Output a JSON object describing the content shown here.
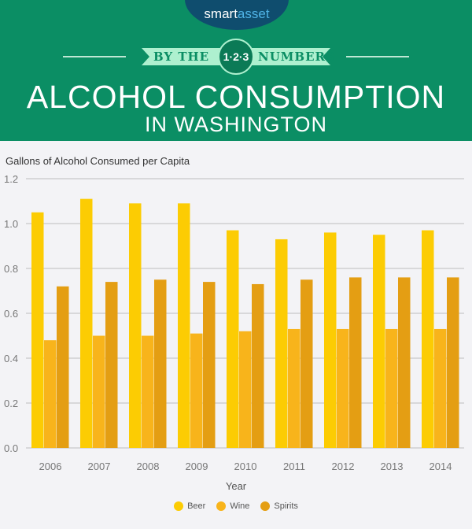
{
  "header": {
    "brand": "smartasset",
    "brand_a": "smart",
    "brand_b": "asset",
    "ribbon_left": "BY THE",
    "ribbon_num": "1·2·3",
    "ribbon_right": "NUMBERS",
    "title": "ALCOHOL CONSUMPTION",
    "subtitle": "IN WASHINGTON"
  },
  "chart_data": {
    "type": "bar",
    "title": "",
    "ylabel": "Gallons of Alcohol Consumed per Capita",
    "xlabel": "Year",
    "ylim": [
      0,
      1.2
    ],
    "yticks": [
      "0.0",
      "0.2",
      "0.4",
      "0.6",
      "0.8",
      "1.0",
      "1.2"
    ],
    "categories": [
      "2006",
      "2007",
      "2008",
      "2009",
      "2010",
      "2011",
      "2012",
      "2013",
      "2014"
    ],
    "series": [
      {
        "name": "Beer",
        "color": "#fccc03",
        "values": [
          1.05,
          1.11,
          1.09,
          1.09,
          0.97,
          0.93,
          0.96,
          0.95,
          0.97
        ]
      },
      {
        "name": "Wine",
        "color": "#f8b41b",
        "values": [
          0.48,
          0.5,
          0.5,
          0.51,
          0.52,
          0.53,
          0.53,
          0.53,
          0.53
        ]
      },
      {
        "name": "Spirits",
        "color": "#e49e13",
        "values": [
          0.72,
          0.74,
          0.75,
          0.74,
          0.73,
          0.75,
          0.76,
          0.76,
          0.76
        ]
      }
    ],
    "grid": true,
    "legend": "bottom"
  },
  "colors": {
    "header": "#0b8e64",
    "logo": "#0f4d6e",
    "ribbon": "#aef0cf"
  }
}
